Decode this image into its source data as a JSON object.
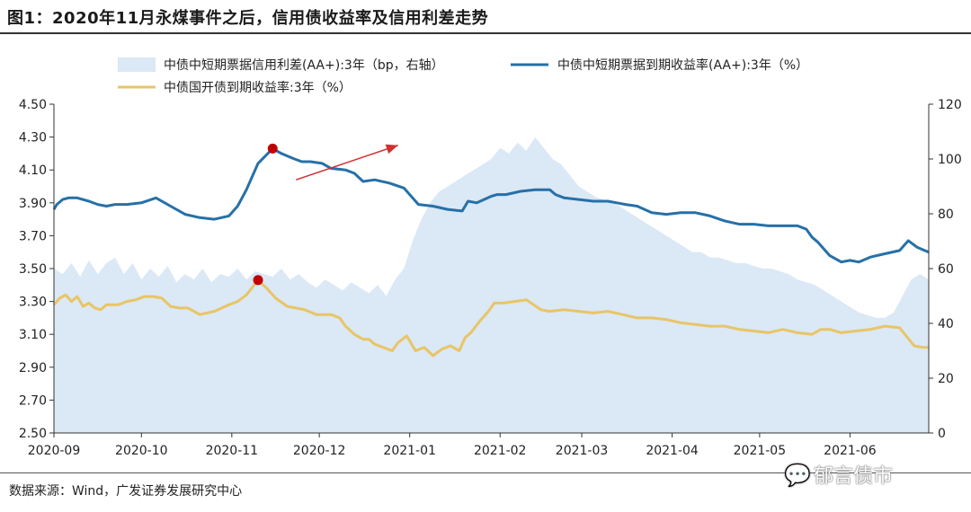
{
  "figure_title": "图1：2020年11月永煤事件之后，信用债收益率及信用利差走势",
  "source_note": "数据来源：Wind，广发证券发展研究中心",
  "watermark": "郁言债市",
  "colors": {
    "spread_area": "#dbe8f5",
    "aa_yield_line": "#2670a8",
    "cdb_yield_line": "#e8c566",
    "marker": "#c00000",
    "arrow": "#d03030"
  },
  "chart_data": {
    "type": "line",
    "title": "",
    "x_ticks": [
      "2020-09",
      "2020-10",
      "2020-11",
      "2020-12",
      "2021-01",
      "2021-02",
      "2021-03",
      "2021-04",
      "2021-05",
      "2021-06"
    ],
    "y_left": {
      "ticks": [
        "4.50",
        "4.30",
        "4.10",
        "3.90",
        "3.70",
        "3.50",
        "3.30",
        "3.10",
        "2.90",
        "2.70",
        "2.50"
      ],
      "range": [
        2.5,
        4.5
      ]
    },
    "y_right": {
      "ticks": [
        "120",
        "100",
        "80",
        "60",
        "40",
        "20",
        "0"
      ],
      "range": [
        0,
        120
      ]
    },
    "series": [
      {
        "name": "中债中短期票据信用利差(AA+):3年（bp，右轴）",
        "kind": "area",
        "axis": "right",
        "t": [
          0,
          3,
          6,
          9,
          12,
          15,
          18,
          21,
          24,
          27,
          30,
          33,
          36,
          39,
          42,
          45,
          48,
          51,
          54,
          57,
          60,
          63,
          66,
          69,
          72,
          75,
          78,
          81,
          84,
          87,
          90,
          93,
          96,
          99,
          102,
          105,
          108,
          111,
          114,
          117,
          120,
          123,
          126,
          129,
          132,
          135,
          138,
          141,
          144,
          147,
          150,
          153,
          156,
          159,
          162,
          165,
          168,
          171,
          174,
          177,
          180,
          183,
          186,
          189,
          192,
          195,
          198,
          201,
          204,
          207,
          210,
          213,
          216,
          219,
          222,
          225,
          228,
          231,
          234,
          237,
          240,
          243,
          246,
          249,
          252,
          255,
          258,
          261,
          264,
          267,
          270,
          273,
          276,
          279,
          282,
          285,
          288,
          291,
          294,
          297,
          300
        ],
        "values": [
          60,
          58,
          62,
          57,
          63,
          58,
          62,
          64,
          58,
          62,
          56,
          60,
          57,
          61,
          55,
          58,
          56,
          60,
          55,
          58,
          57,
          60,
          56,
          59,
          58,
          57,
          60,
          56,
          58,
          55,
          53,
          56,
          54,
          52,
          55,
          53,
          51,
          54,
          50,
          56,
          60,
          70,
          78,
          84,
          88,
          90,
          92,
          94,
          96,
          98,
          100,
          104,
          102,
          106,
          103,
          108,
          104,
          100,
          98,
          94,
          90,
          88,
          86,
          85,
          84,
          82,
          80,
          78,
          76,
          74,
          72,
          70,
          68,
          66,
          66,
          64,
          64,
          63,
          62,
          62,
          61,
          60,
          60,
          59,
          58,
          56,
          55,
          54,
          52,
          50,
          48,
          46,
          44,
          43,
          42,
          42,
          44,
          50,
          56,
          58,
          56
        ]
      },
      {
        "name": "中债中短期票据到期收益率(AA+):3年（%）",
        "kind": "line",
        "axis": "left",
        "t": [
          0,
          1,
          3,
          5,
          8,
          12,
          15,
          18,
          21,
          25,
          30,
          35,
          40,
          45,
          50,
          55,
          60,
          63,
          66,
          70,
          75,
          78,
          82,
          85,
          88,
          92,
          95,
          100,
          103,
          106,
          110,
          115,
          120,
          125,
          130,
          135,
          140,
          142,
          145,
          150,
          152,
          155,
          160,
          165,
          170,
          172,
          175,
          180,
          185,
          190,
          193,
          196,
          200,
          205,
          210,
          215,
          220,
          225,
          230,
          235,
          240,
          245,
          250,
          255,
          258,
          260,
          262,
          266,
          270,
          273,
          276,
          280,
          285,
          290,
          293,
          296,
          300
        ],
        "values": [
          3.86,
          3.89,
          3.92,
          3.93,
          3.93,
          3.91,
          3.89,
          3.88,
          3.89,
          3.89,
          3.9,
          3.93,
          3.88,
          3.83,
          3.81,
          3.8,
          3.82,
          3.88,
          3.98,
          4.14,
          4.23,
          4.2,
          4.17,
          4.15,
          4.15,
          4.14,
          4.11,
          4.1,
          4.08,
          4.03,
          4.04,
          4.02,
          3.99,
          3.89,
          3.88,
          3.86,
          3.85,
          3.91,
          3.9,
          3.94,
          3.95,
          3.95,
          3.97,
          3.98,
          3.98,
          3.95,
          3.93,
          3.92,
          3.91,
          3.91,
          3.9,
          3.89,
          3.88,
          3.84,
          3.83,
          3.84,
          3.84,
          3.82,
          3.79,
          3.77,
          3.77,
          3.76,
          3.76,
          3.76,
          3.74,
          3.69,
          3.66,
          3.58,
          3.54,
          3.55,
          3.54,
          3.57,
          3.59,
          3.61,
          3.67,
          3.63,
          3.6
        ]
      },
      {
        "name": "中债国开债到期收益率:3年（%）",
        "kind": "line",
        "axis": "left",
        "t": [
          0,
          2,
          4,
          6,
          8,
          10,
          12,
          14,
          16,
          18,
          20,
          22,
          25,
          28,
          31,
          34,
          37,
          40,
          43,
          46,
          50,
          55,
          60,
          63,
          66,
          70,
          73,
          76,
          80,
          83,
          86,
          90,
          95,
          98,
          100,
          103,
          106,
          108,
          110,
          113,
          116,
          118,
          121,
          124,
          127,
          130,
          133,
          136,
          139,
          141,
          143,
          146,
          149,
          151,
          154,
          158,
          162,
          167,
          170,
          175,
          180,
          185,
          190,
          195,
          200,
          205,
          210,
          215,
          220,
          225,
          230,
          235,
          240,
          245,
          250,
          255,
          260,
          263,
          266,
          270,
          275,
          280,
          285,
          290,
          295,
          298,
          300
        ],
        "values": [
          3.28,
          3.32,
          3.34,
          3.3,
          3.33,
          3.27,
          3.29,
          3.26,
          3.25,
          3.28,
          3.28,
          3.28,
          3.3,
          3.31,
          3.33,
          3.33,
          3.32,
          3.27,
          3.26,
          3.26,
          3.22,
          3.24,
          3.28,
          3.3,
          3.34,
          3.43,
          3.38,
          3.32,
          3.27,
          3.26,
          3.25,
          3.22,
          3.22,
          3.2,
          3.15,
          3.1,
          3.07,
          3.07,
          3.04,
          3.02,
          3.0,
          3.05,
          3.09,
          3.0,
          3.02,
          2.97,
          3.01,
          3.03,
          3.0,
          3.08,
          3.11,
          3.18,
          3.24,
          3.29,
          3.29,
          3.3,
          3.31,
          3.25,
          3.24,
          3.25,
          3.24,
          3.23,
          3.24,
          3.22,
          3.2,
          3.2,
          3.19,
          3.17,
          3.16,
          3.15,
          3.15,
          3.13,
          3.12,
          3.11,
          3.13,
          3.11,
          3.1,
          3.13,
          3.13,
          3.11,
          3.12,
          3.13,
          3.15,
          3.14,
          3.03,
          3.02,
          3.02
        ]
      }
    ],
    "markers": [
      {
        "series": 1,
        "t": 75,
        "value": 4.23
      },
      {
        "series": 2,
        "t": 70,
        "value": 3.43
      }
    ],
    "arrow": {
      "from_t": 83,
      "from_value": 4.04,
      "to_t": 118,
      "to_value": 4.25
    },
    "x_tick_t": [
      0,
      30,
      61,
      91,
      122,
      153,
      181,
      212,
      242,
      273
    ]
  }
}
